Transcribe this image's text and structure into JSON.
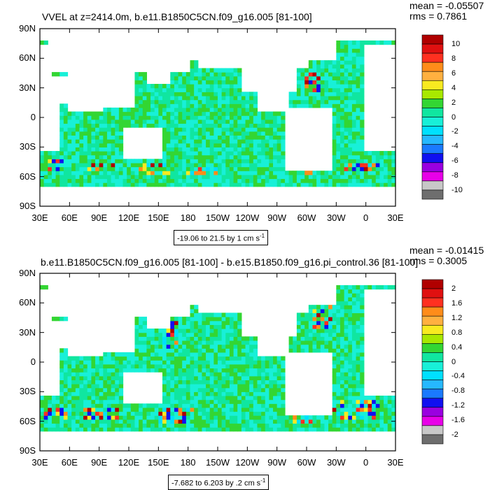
{
  "chart_data": [
    {
      "type": "heatmap",
      "title": "VVEL at z=2414.0m, b.e11.B1850C5CN.f09_g16.005 [81-100]",
      "stats": {
        "mean": "mean = -0.05507",
        "rms": "rms = 0.7861"
      },
      "contour_info": {
        "text": "-19.06 to 21.5 by 1 cm s",
        "unit_exp": "-1"
      },
      "x_ticks": [
        "30E",
        "60E",
        "90E",
        "120E",
        "150E",
        "180",
        "150W",
        "120W",
        "90W",
        "60W",
        "30W",
        "0",
        "30E"
      ],
      "y_ticks": [
        "90N",
        "60N",
        "30N",
        "0",
        "30S",
        "60S",
        "90S"
      ],
      "colorbar_labels": [
        "10",
        "8",
        "6",
        "4",
        "2",
        "0",
        "-2",
        "-4",
        "-6",
        "-8",
        "-10"
      ],
      "colors": [
        "#b00000",
        "#e01010",
        "#ff3020",
        "#ff8c1a",
        "#ffb040",
        "#f8ea20",
        "#a8e800",
        "#33d633",
        "#10e6a0",
        "#18f0d8",
        "#00e0ff",
        "#26b8ff",
        "#1a7aff",
        "#1010f0",
        "#9a00e0",
        "#e800e8",
        "#c8c8c8",
        "#6e6e6e"
      ],
      "ocean_colors": [
        "#10e6a0",
        "#33d633",
        "#18f0d8"
      ],
      "hotspot_colors": [
        "#ff3020",
        "#1010f0",
        "#ff8c1a",
        "#00e0ff",
        "#f8ea20",
        "#b00000"
      ],
      "x_range": [
        30,
        390
      ],
      "y_range": [
        -90,
        90
      ],
      "extreme_regions": [
        {
          "lon": [
            35,
            55
          ],
          "lat": [
            -52,
            -44
          ]
        },
        {
          "lon": [
            80,
            105
          ],
          "lat": [
            -52,
            -45
          ]
        },
        {
          "lon": [
            130,
            160
          ],
          "lat": [
            -58,
            -48
          ]
        },
        {
          "lon": [
            175,
            210
          ],
          "lat": [
            -58,
            -52
          ]
        },
        {
          "lon": [
            290,
            305
          ],
          "lat": [
            -58,
            -50
          ]
        },
        {
          "lon": [
            340,
            372
          ],
          "lat": [
            -55,
            -45
          ]
        },
        {
          "lon": [
            300,
            315
          ],
          "lat": [
            25,
            45
          ]
        }
      ]
    },
    {
      "type": "heatmap",
      "title": "b.e11.B1850C5CN.f09_g16.005 [81-100] - b.e15.B1850.f09_g16.pi_control.36 [81-100]",
      "stats": {
        "mean": "mean = -0.01415",
        "rms": "rms = 0.3005"
      },
      "contour_info": {
        "text": "-7.682 to 6.203 by .2 cm s",
        "unit_exp": "-1"
      },
      "x_ticks": [
        "30E",
        "60E",
        "90E",
        "120E",
        "150E",
        "180",
        "150W",
        "120W",
        "90W",
        "60W",
        "30W",
        "0",
        "30E"
      ],
      "y_ticks": [
        "90N",
        "60N",
        "30N",
        "0",
        "30S",
        "60S",
        "90S"
      ],
      "colorbar_labels": [
        "2",
        "1.6",
        "1.2",
        "0.8",
        "0.4",
        "0",
        "-0.4",
        "-0.8",
        "-1.2",
        "-1.6",
        "-2"
      ],
      "colors": [
        "#b00000",
        "#e01010",
        "#ff3020",
        "#ff8c1a",
        "#ffb040",
        "#f8ea20",
        "#a8e800",
        "#33d633",
        "#10e6a0",
        "#18f0d8",
        "#00e0ff",
        "#26b8ff",
        "#1a7aff",
        "#1010f0",
        "#9a00e0",
        "#e800e8",
        "#c8c8c8",
        "#6e6e6e"
      ],
      "ocean_colors": [
        "#33d633",
        "#10e6a0",
        "#18f0d8"
      ],
      "hotspot_colors": [
        "#ff3020",
        "#1010f0",
        "#ff8c1a",
        "#00e0ff",
        "#b00000",
        "#f8ea20"
      ],
      "x_range": [
        30,
        390
      ],
      "y_range": [
        -90,
        90
      ],
      "extreme_regions": [
        {
          "lon": [
            35,
            60
          ],
          "lat": [
            -58,
            -45
          ]
        },
        {
          "lon": [
            75,
            110
          ],
          "lat": [
            -58,
            -45
          ]
        },
        {
          "lon": [
            150,
            185
          ],
          "lat": [
            -60,
            -48
          ]
        },
        {
          "lon": [
            285,
            310
          ],
          "lat": [
            -62,
            -40
          ]
        },
        {
          "lon": [
            320,
            372
          ],
          "lat": [
            -58,
            -38
          ]
        },
        {
          "lon": [
            305,
            325
          ],
          "lat": [
            35,
            60
          ]
        },
        {
          "lon": [
            155,
            170
          ],
          "lat": [
            15,
            40
          ]
        }
      ]
    }
  ]
}
